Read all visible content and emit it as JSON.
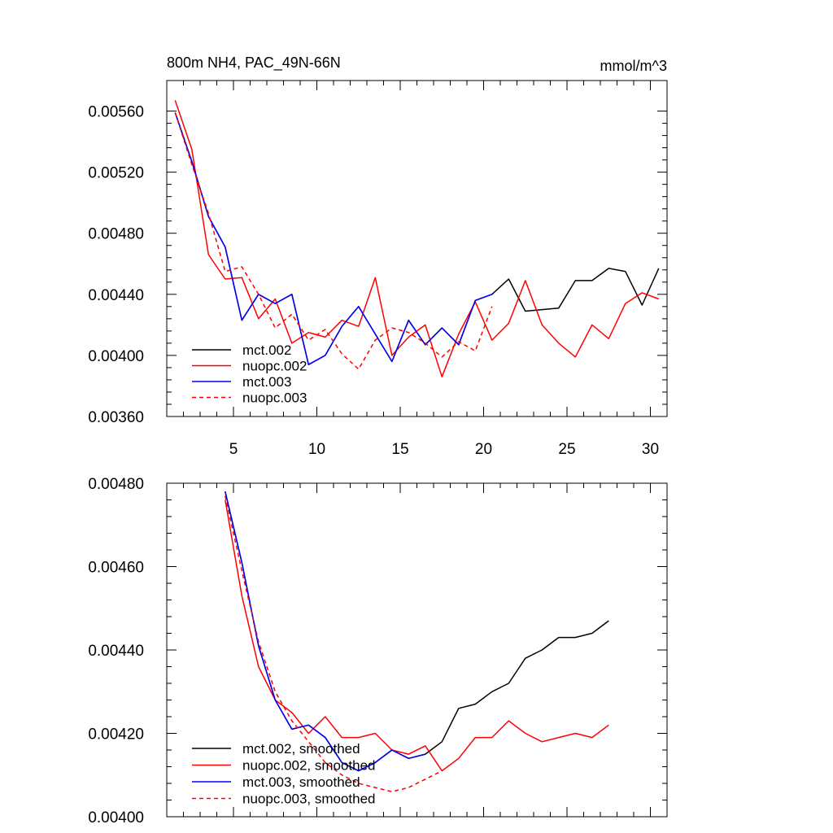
{
  "chart_data": [
    {
      "type": "line",
      "title": "800m NH4, PAC_49N-66N",
      "units": "mmol/m^3",
      "xlim": [
        1,
        31
      ],
      "ylim": [
        0.0036,
        0.0058
      ],
      "x_ticks": [
        5,
        10,
        15,
        20,
        25,
        30
      ],
      "x_tick_labels": [
        "5",
        "10",
        "15",
        "20",
        "25",
        "30"
      ],
      "y_ticks": [
        0.0036,
        0.004,
        0.0044,
        0.0048,
        0.0052,
        0.0056
      ],
      "y_tick_labels": [
        "0.00360",
        "0.00400",
        "0.00440",
        "0.00480",
        "0.00520",
        "0.00560"
      ],
      "legend_position": "bottom-left",
      "series": [
        {
          "name": "mct.002",
          "color": "#000000",
          "dash": "solid",
          "x": [
            1.5,
            2.5,
            3.5,
            4.5,
            5.5,
            6.5,
            7.5,
            8.5,
            9.5,
            10.5,
            11.5,
            12.5,
            13.5,
            14.5,
            15.5,
            16.5,
            17.5,
            18.5,
            19.5,
            20.5,
            21.5,
            22.5,
            23.5,
            24.5,
            25.5,
            26.5,
            27.5,
            28.5,
            29.5,
            30.5
          ],
          "y": [
            0.00559,
            0.00527,
            0.00491,
            0.00471,
            0.00423,
            0.0044,
            0.00434,
            0.0044,
            0.00394,
            0.004,
            0.00419,
            0.00432,
            0.00414,
            0.00396,
            0.00423,
            0.00407,
            0.00418,
            0.00407,
            0.00436,
            0.0044,
            0.0045,
            0.00429,
            0.0043,
            0.00431,
            0.00449,
            0.00449,
            0.00457,
            0.00455,
            0.00433,
            0.00457
          ]
        },
        {
          "name": "nuopc.002",
          "color": "#ff0000",
          "dash": "solid",
          "x": [
            1.5,
            2.5,
            3.5,
            4.5,
            5.5,
            6.5,
            7.5,
            8.5,
            9.5,
            10.5,
            11.5,
            12.5,
            13.5,
            14.5,
            15.5,
            16.5,
            17.5,
            18.5,
            19.5,
            20.5,
            21.5,
            22.5,
            23.5,
            24.5,
            25.5,
            26.5,
            27.5,
            28.5,
            29.5,
            30.5
          ],
          "y": [
            0.00567,
            0.00535,
            0.00466,
            0.0045,
            0.00451,
            0.00424,
            0.00437,
            0.00408,
            0.00415,
            0.00412,
            0.00423,
            0.00419,
            0.00451,
            0.004,
            0.00412,
            0.0042,
            0.00386,
            0.00414,
            0.00435,
            0.0041,
            0.00421,
            0.00449,
            0.0042,
            0.00408,
            0.00399,
            0.0042,
            0.00411,
            0.00434,
            0.00441,
            0.00437
          ]
        },
        {
          "name": "mct.003",
          "color": "#0000ff",
          "dash": "solid",
          "x": [
            1.5,
            2.5,
            3.5,
            4.5,
            5.5,
            6.5,
            7.5,
            8.5,
            9.5,
            10.5,
            11.5,
            12.5,
            13.5,
            14.5,
            15.5,
            16.5,
            17.5,
            18.5,
            19.5,
            20.5
          ],
          "y": [
            0.00559,
            0.00527,
            0.00491,
            0.00471,
            0.00423,
            0.0044,
            0.00434,
            0.0044,
            0.00394,
            0.004,
            0.00419,
            0.00432,
            0.00414,
            0.00396,
            0.00423,
            0.00407,
            0.00418,
            0.00407,
            0.00436,
            0.0044
          ]
        },
        {
          "name": "nuopc.003",
          "color": "#ff0000",
          "dash": "dashed",
          "x": [
            1.5,
            2.5,
            3.5,
            4.5,
            5.5,
            6.5,
            7.5,
            8.5,
            9.5,
            10.5,
            11.5,
            12.5,
            13.5,
            14.5,
            15.5,
            16.5,
            17.5,
            18.5,
            19.5,
            20.5
          ],
          "y": [
            0.00559,
            0.00525,
            0.00493,
            0.00455,
            0.00458,
            0.0044,
            0.00418,
            0.00427,
            0.0041,
            0.00417,
            0.00401,
            0.00391,
            0.0041,
            0.00418,
            0.00415,
            0.00408,
            0.00399,
            0.00409,
            0.00403,
            0.00432
          ]
        }
      ]
    },
    {
      "type": "line",
      "title": "",
      "units": "",
      "xlim": [
        1,
        31
      ],
      "ylim": [
        0.004,
        0.0048
      ],
      "x_ticks": [
        5,
        10,
        15,
        20,
        25,
        30
      ],
      "x_tick_labels": [],
      "y_ticks": [
        0.004,
        0.0042,
        0.0044,
        0.0046,
        0.0048
      ],
      "y_tick_labels": [
        "0.00400",
        "0.00420",
        "0.00440",
        "0.00460",
        "0.00480"
      ],
      "legend_position": "bottom-left",
      "series": [
        {
          "name": "mct.002, smoothed",
          "color": "#000000",
          "dash": "solid",
          "x": [
            4.5,
            5.5,
            6.5,
            7.5,
            8.5,
            9.5,
            10.5,
            11.5,
            12.5,
            13.5,
            14.5,
            15.5,
            16.5,
            17.5,
            18.5,
            19.5,
            20.5,
            21.5,
            22.5,
            23.5,
            24.5,
            25.5,
            26.5,
            27.5
          ],
          "y": [
            0.00478,
            0.00461,
            0.00441,
            0.00428,
            0.00421,
            0.00422,
            0.00419,
            0.00413,
            0.00411,
            0.00413,
            0.00416,
            0.00414,
            0.00415,
            0.00418,
            0.00426,
            0.00427,
            0.0043,
            0.00432,
            0.00438,
            0.0044,
            0.00443,
            0.00443,
            0.00444,
            0.00447
          ]
        },
        {
          "name": "nuopc.002, smoothed",
          "color": "#ff0000",
          "dash": "solid",
          "x": [
            4.5,
            5.5,
            6.5,
            7.5,
            8.5,
            9.5,
            10.5,
            11.5,
            12.5,
            13.5,
            14.5,
            15.5,
            16.5,
            17.5,
            18.5,
            19.5,
            20.5,
            21.5,
            22.5,
            23.5,
            24.5,
            25.5,
            26.5,
            27.5
          ],
          "y": [
            0.00476,
            0.00453,
            0.00436,
            0.00428,
            0.00425,
            0.0042,
            0.00424,
            0.00419,
            0.00419,
            0.0042,
            0.00416,
            0.00415,
            0.00417,
            0.00411,
            0.00414,
            0.00419,
            0.00419,
            0.00423,
            0.0042,
            0.00418,
            0.00419,
            0.0042,
            0.00419,
            0.00422
          ]
        },
        {
          "name": "mct.003, smoothed",
          "color": "#0000ff",
          "dash": "solid",
          "x": [
            4.5,
            5.5,
            6.5,
            7.5,
            8.5,
            9.5,
            10.5,
            11.5,
            12.5,
            13.5,
            14.5,
            15.5,
            16.5
          ],
          "y": [
            0.00478,
            0.00461,
            0.00441,
            0.00428,
            0.00421,
            0.00422,
            0.00419,
            0.00413,
            0.00411,
            0.00413,
            0.00416,
            0.00414,
            0.00415
          ]
        },
        {
          "name": "nuopc.003, smoothed",
          "color": "#ff0000",
          "dash": "dashed",
          "x": [
            4.5,
            5.5,
            6.5,
            7.5,
            8.5,
            9.5,
            10.5,
            11.5,
            12.5,
            13.5,
            14.5,
            15.5,
            16.5,
            17.5
          ],
          "y": [
            0.00477,
            0.00459,
            0.00442,
            0.0043,
            0.00423,
            0.00418,
            0.00413,
            0.0041,
            0.00408,
            0.00407,
            0.00406,
            0.00407,
            0.00409,
            0.00411
          ]
        }
      ]
    }
  ]
}
